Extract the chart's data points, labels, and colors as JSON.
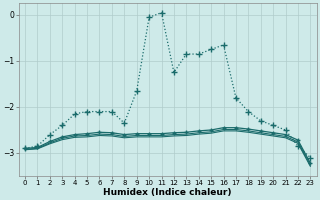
{
  "xlabel": "Humidex (Indice chaleur)",
  "background_color": "#ceeae9",
  "grid_color": "#b0cccc",
  "line_color": "#1a6b6b",
  "xlim": [
    -0.5,
    23.5
  ],
  "ylim": [
    -3.5,
    0.25
  ],
  "yticks": [
    0,
    -1,
    -2,
    -3
  ],
  "xticks": [
    0,
    1,
    2,
    3,
    4,
    5,
    6,
    7,
    8,
    9,
    10,
    11,
    12,
    13,
    14,
    15,
    16,
    17,
    18,
    19,
    20,
    21,
    22,
    23
  ],
  "series": [
    {
      "x": [
        0,
        1,
        2,
        3,
        4,
        5,
        6,
        7,
        8,
        9,
        10,
        11,
        12,
        13,
        14,
        15,
        16,
        17,
        18,
        19,
        20,
        21,
        22,
        23
      ],
      "y": [
        -2.9,
        -2.85,
        -2.6,
        -2.4,
        -2.15,
        -2.1,
        -2.1,
        -2.1,
        -2.35,
        -1.65,
        -0.05,
        0.05,
        -1.25,
        -0.85,
        -0.85,
        -0.75,
        -0.65,
        -1.8,
        -2.1,
        -2.3,
        -2.4,
        -2.5,
        -2.85,
        -3.1
      ],
      "marker": "+",
      "markersize": 4,
      "linewidth": 0.9,
      "linestyle": ":",
      "color": "#1a6b6b"
    },
    {
      "x": [
        0,
        1,
        2,
        3,
        4,
        5,
        6,
        7,
        8,
        9,
        10,
        11,
        12,
        13,
        14,
        15,
        16,
        17,
        18,
        19,
        20,
        21,
        22,
        23
      ],
      "y": [
        -2.9,
        -2.88,
        -2.75,
        -2.65,
        -2.6,
        -2.58,
        -2.55,
        -2.56,
        -2.6,
        -2.58,
        -2.58,
        -2.58,
        -2.56,
        -2.55,
        -2.52,
        -2.5,
        -2.45,
        -2.45,
        -2.48,
        -2.52,
        -2.56,
        -2.6,
        -2.72,
        -3.22
      ],
      "marker": "+",
      "markersize": 2.5,
      "linewidth": 0.9,
      "linestyle": "-",
      "color": "#1a6b6b"
    },
    {
      "x": [
        0,
        1,
        2,
        3,
        4,
        5,
        6,
        7,
        8,
        9,
        10,
        11,
        12,
        13,
        14,
        15,
        16,
        17,
        18,
        19,
        20,
        21,
        22,
        23
      ],
      "y": [
        -2.92,
        -2.9,
        -2.78,
        -2.68,
        -2.63,
        -2.62,
        -2.59,
        -2.6,
        -2.64,
        -2.62,
        -2.62,
        -2.62,
        -2.6,
        -2.59,
        -2.56,
        -2.54,
        -2.49,
        -2.49,
        -2.52,
        -2.56,
        -2.6,
        -2.64,
        -2.76,
        -3.26
      ],
      "marker": null,
      "markersize": 0,
      "linewidth": 0.8,
      "linestyle": "-",
      "color": "#1a6b6b"
    },
    {
      "x": [
        0,
        1,
        2,
        3,
        4,
        5,
        6,
        7,
        8,
        9,
        10,
        11,
        12,
        13,
        14,
        15,
        16,
        17,
        18,
        19,
        20,
        21,
        22,
        23
      ],
      "y": [
        -2.93,
        -2.91,
        -2.8,
        -2.71,
        -2.66,
        -2.65,
        -2.62,
        -2.63,
        -2.67,
        -2.65,
        -2.65,
        -2.65,
        -2.63,
        -2.62,
        -2.59,
        -2.57,
        -2.52,
        -2.52,
        -2.55,
        -2.59,
        -2.63,
        -2.67,
        -2.79,
        -3.29
      ],
      "marker": null,
      "markersize": 0,
      "linewidth": 0.8,
      "linestyle": "-",
      "color": "#1a6b6b"
    }
  ]
}
